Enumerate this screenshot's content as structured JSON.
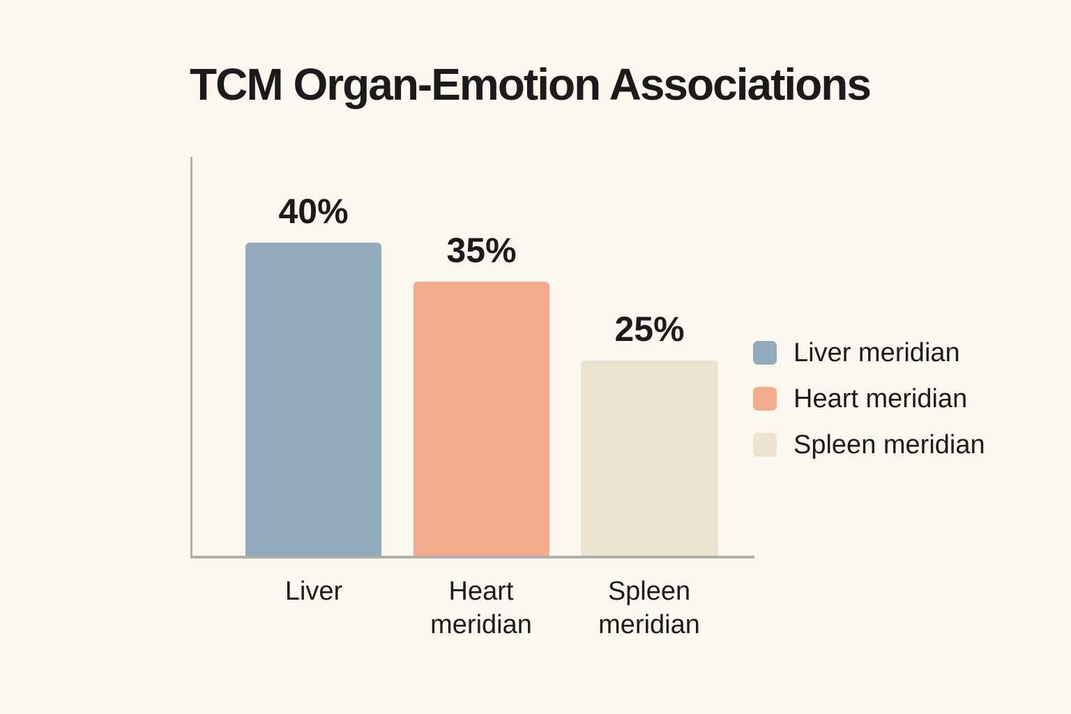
{
  "title": "TCM Organ-Emotion Associations",
  "chart_data": {
    "type": "bar",
    "title": "TCM Organ-Emotion Associations",
    "categories": [
      "Liver",
      "Heart meridian",
      "Spleen meridian"
    ],
    "values": [
      40,
      35,
      25
    ],
    "value_labels": [
      "40%",
      "35%",
      "25%"
    ],
    "unit": "percent",
    "ylim": [
      0,
      50
    ],
    "grid": false,
    "axes_ticks_visible": false,
    "bar_colors": [
      "#93a9bc",
      "#f2ab8c",
      "#ebe2d0"
    ],
    "legend_position": "right",
    "legend": [
      {
        "label": "Liver meridian",
        "color": "#93a9bc"
      },
      {
        "label": "Heart meridian",
        "color": "#f2ab8c"
      },
      {
        "label": "Spleen meridian",
        "color": "#ebe2d0"
      }
    ]
  },
  "colors": {
    "background": "#fbf7ee",
    "axis": "#b1afa8",
    "text": "#1b1b1b"
  }
}
